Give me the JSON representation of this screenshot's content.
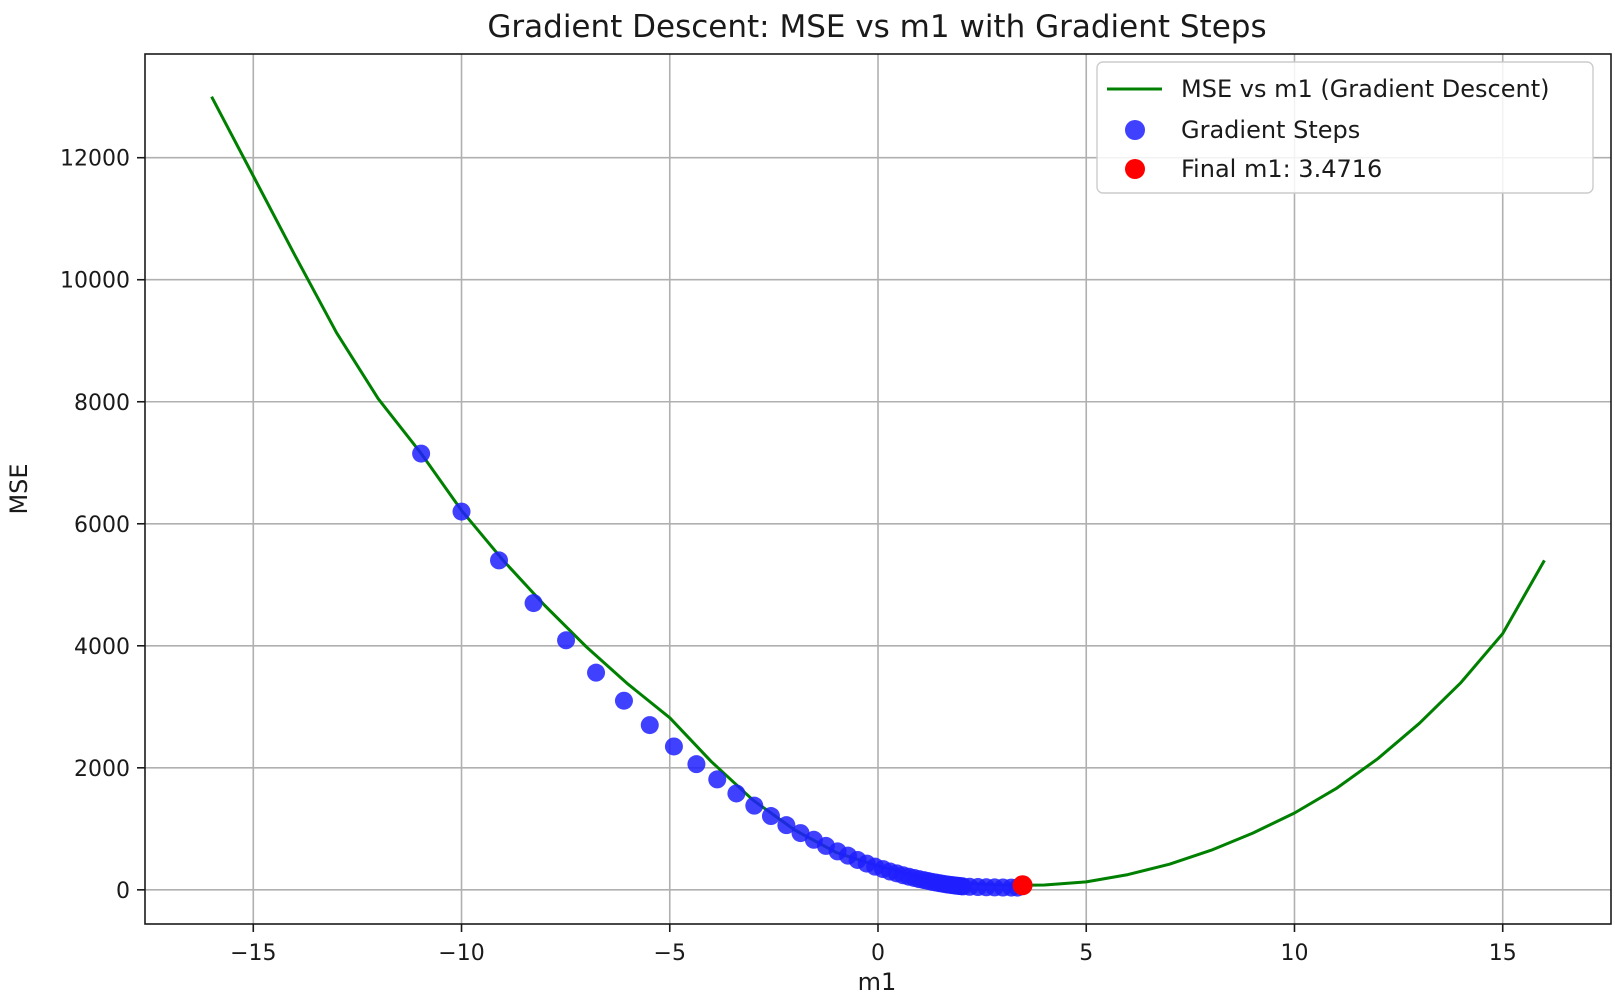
{
  "chart_data": {
    "type": "line",
    "title": "Gradient Descent: MSE vs m1 with Gradient Steps",
    "xlabel": "m1",
    "ylabel": "MSE",
    "xlim": [
      -17.6,
      17.6
    ],
    "ylim": [
      -560,
      13700
    ],
    "xticks": [
      -15,
      -10,
      -5,
      0,
      5,
      10,
      15
    ],
    "yticks": [
      0,
      2000,
      4000,
      6000,
      8000,
      10000,
      12000
    ],
    "xtick_labels": [
      "−15",
      "−10",
      "−5",
      "0",
      "5",
      "10",
      "15"
    ],
    "ytick_labels": [
      "0",
      "2000",
      "4000",
      "6000",
      "8000",
      "10000",
      "12000"
    ],
    "grid": true,
    "legend_position": "top-right",
    "series": [
      {
        "name": "MSE vs m1 (Gradient Descent)",
        "kind": "line",
        "color": "#008000",
        "x": [
          -16,
          -15,
          -14,
          -13,
          -12,
          -11,
          -10,
          -9,
          -8,
          -7,
          -6,
          -5,
          -4,
          -3,
          -2,
          -1,
          0,
          1,
          2,
          3,
          3.4716,
          4,
          5,
          6,
          7,
          8,
          9,
          10,
          11,
          12,
          13,
          14,
          15,
          16
        ],
        "y": [
          13000,
          11700,
          10400,
          9130,
          8050,
          7180,
          6220,
          5400,
          4660,
          3980,
          3370,
          2820,
          2100,
          1470,
          980,
          610,
          390,
          220,
          110,
          80,
          75,
          80,
          130,
          250,
          420,
          650,
          930,
          1260,
          1660,
          2150,
          2730,
          3400,
          4200,
          5400
        ]
      },
      {
        "name": "Gradient Steps",
        "kind": "scatter",
        "color": "#1f1fff",
        "x": [
          -10.97,
          -10.0,
          -9.1,
          -8.27,
          -7.49,
          -6.77,
          -6.1,
          -5.48,
          -4.9,
          -4.36,
          -3.86,
          -3.4,
          -2.97,
          -2.57,
          -2.2,
          -1.86,
          -1.54,
          -1.25,
          -0.97,
          -0.72,
          -0.49,
          -0.27,
          -0.07,
          0.12,
          0.29,
          0.45,
          0.6,
          0.74,
          0.87,
          0.99,
          1.1,
          1.2,
          1.3,
          1.39,
          1.47,
          1.55,
          1.62,
          1.69,
          1.75,
          1.81,
          1.86,
          1.91,
          1.96,
          2.0,
          2.04,
          2.2,
          2.4,
          2.6,
          2.8,
          3.0,
          3.2,
          3.35
        ],
        "y": [
          7150,
          6200,
          5400,
          4700,
          4090,
          3560,
          3100,
          2700,
          2350,
          2060,
          1810,
          1580,
          1380,
          1210,
          1060,
          930,
          820,
          720,
          630,
          560,
          490,
          430,
          380,
          340,
          300,
          270,
          240,
          215,
          195,
          175,
          160,
          145,
          130,
          120,
          110,
          100,
          92,
          85,
          80,
          75,
          70,
          66,
          62,
          59,
          56,
          50,
          46,
          42,
          40,
          38,
          37,
          37
        ]
      },
      {
        "name": "Final m1: 3.4716",
        "kind": "point",
        "color": "#ff0000",
        "x": [
          3.4716
        ],
        "y": [
          75
        ]
      }
    ]
  }
}
